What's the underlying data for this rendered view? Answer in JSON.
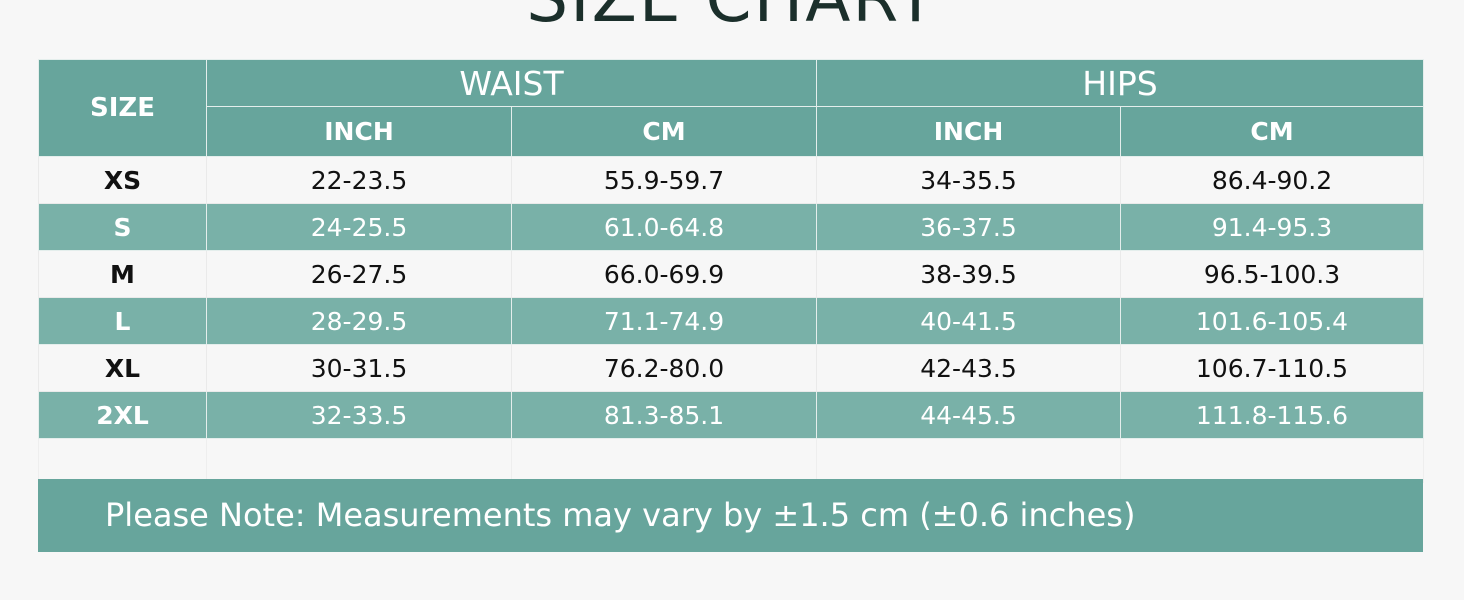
{
  "title": "SIZE CHART",
  "headers": {
    "size": "SIZE",
    "waist": "WAIST",
    "hips": "HIPS",
    "inch": "INCH",
    "cm": "CM"
  },
  "rows": [
    {
      "size": "XS",
      "waist_inch": "22-23.5",
      "waist_cm": "55.9-59.7",
      "hips_inch": "34-35.5",
      "hips_cm": "86.4-90.2"
    },
    {
      "size": "S",
      "waist_inch": "24-25.5",
      "waist_cm": "61.0-64.8",
      "hips_inch": "36-37.5",
      "hips_cm": "91.4-95.3"
    },
    {
      "size": "M",
      "waist_inch": "26-27.5",
      "waist_cm": "66.0-69.9",
      "hips_inch": "38-39.5",
      "hips_cm": "96.5-100.3"
    },
    {
      "size": "L",
      "waist_inch": "28-29.5",
      "waist_cm": "71.1-74.9",
      "hips_inch": "40-41.5",
      "hips_cm": "101.6-105.4"
    },
    {
      "size": "XL",
      "waist_inch": "30-31.5",
      "waist_cm": "76.2-80.0",
      "hips_inch": "42-43.5",
      "hips_cm": "106.7-110.5"
    },
    {
      "size": "2XL",
      "waist_inch": "32-33.5",
      "waist_cm": "81.3-85.1",
      "hips_inch": "44-45.5",
      "hips_cm": "111.8-115.6"
    }
  ],
  "note": "Please Note: Measurements may vary by ±1.5 cm (±0.6 inches)",
  "colors": {
    "header": "#67a59c",
    "stripe": "#79b1a8",
    "title": "#1b2f2b"
  }
}
